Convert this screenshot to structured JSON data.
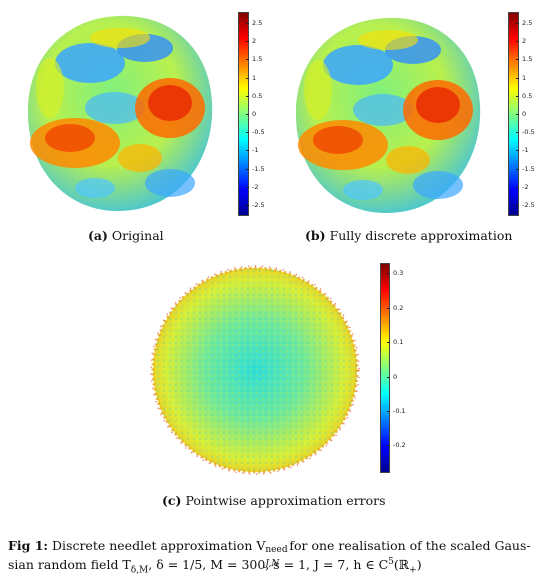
{
  "panels": [
    {
      "label": "(a)",
      "caption": "Original",
      "colorbar": {
        "min": -2.8,
        "max": 2.8,
        "ticks": [
          "2.5",
          "2",
          "1.5",
          "1",
          "0.5",
          "0",
          "-0.5",
          "-1",
          "-1.5",
          "-2",
          "-2.5"
        ],
        "tick_values": [
          2.5,
          2,
          1.5,
          1,
          0.5,
          0,
          -0.5,
          -1,
          -1.5,
          -2,
          -2.5
        ]
      }
    },
    {
      "label": "(b)",
      "caption": "Fully discrete approximation",
      "colorbar": {
        "min": -2.8,
        "max": 2.8,
        "ticks": [
          "2.5",
          "2",
          "1.5",
          "1",
          "0.5",
          "0",
          "-0.5",
          "-1",
          "-1.5",
          "-2",
          "-2.5"
        ],
        "tick_values": [
          2.5,
          2,
          1.5,
          1,
          0.5,
          0,
          -0.5,
          -1,
          -1.5,
          -2,
          -2.5
        ]
      }
    },
    {
      "label": "(c)",
      "caption": "Pointwise approximation errors",
      "colorbar": {
        "min": -0.28,
        "max": 0.33,
        "ticks": [
          "0.3",
          "0.2",
          "0.1",
          "0",
          "-0.1",
          "-0.2"
        ],
        "tick_values": [
          0.3,
          0.2,
          0.1,
          0,
          -0.1,
          -0.2
        ]
      }
    }
  ],
  "figure_caption": {
    "label": "Fig 1:",
    "line1": "Discrete needlet approximation V",
    "line1_sub": "J,N",
    "line1_sup": "need",
    "line1_rest": " for one realisation of the scaled Gaus-",
    "line2": "sian random field T",
    "line2_sub": "δ,M",
    "line2_rest": ", δ = 1/5, M = 300, s = 1, J = 7, h ∈ C",
    "line2_sup": "5",
    "line2_end": "(ℝ",
    "line2_sub2": "+",
    "line2_close": ")"
  },
  "colors": {
    "jet": [
      "#00008f",
      "#0000ff",
      "#0080ff",
      "#00ffff",
      "#80ff80",
      "#ffff00",
      "#ff8000",
      "#ff0000",
      "#800000"
    ]
  }
}
